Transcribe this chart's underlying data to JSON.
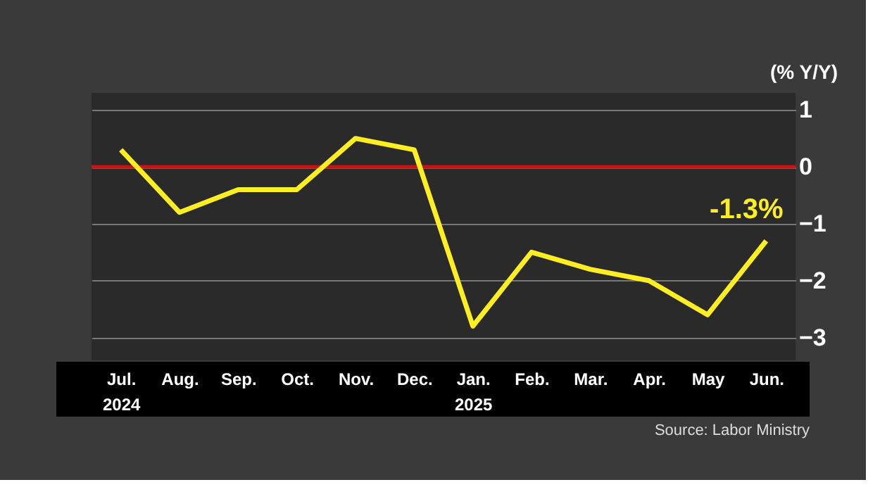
{
  "chart_data": {
    "type": "line",
    "ylabel": "(% Y/Y)",
    "categories": [
      "Jul.\n2024",
      "Aug.",
      "Sep.",
      "Oct.",
      "Nov.",
      "Dec.",
      "Jan.\n2025",
      "Feb.",
      "Mar.",
      "Apr.",
      "May",
      "Jun."
    ],
    "series": [
      {
        "color": "#ffee22",
        "values": [
          0.3,
          -0.8,
          -0.4,
          -0.4,
          0.5,
          0.3,
          -2.8,
          -1.5,
          -1.8,
          -2.0,
          -2.6,
          -1.3
        ],
        "value_labels": [
          null,
          null,
          null,
          null,
          null,
          null,
          null,
          null,
          null,
          null,
          null,
          "-1.3%"
        ]
      }
    ],
    "ylim": [
      -3.4,
      1.3
    ],
    "yticks": [
      1,
      0,
      -1,
      -2,
      -3
    ],
    "grid": "y",
    "marker": "none",
    "line_style": "solid",
    "ref_lines": [
      {
        "axis": "y",
        "value": 0,
        "color": "#cc1111"
      }
    ],
    "annotations": [
      "Source: Labor Ministry"
    ]
  }
}
